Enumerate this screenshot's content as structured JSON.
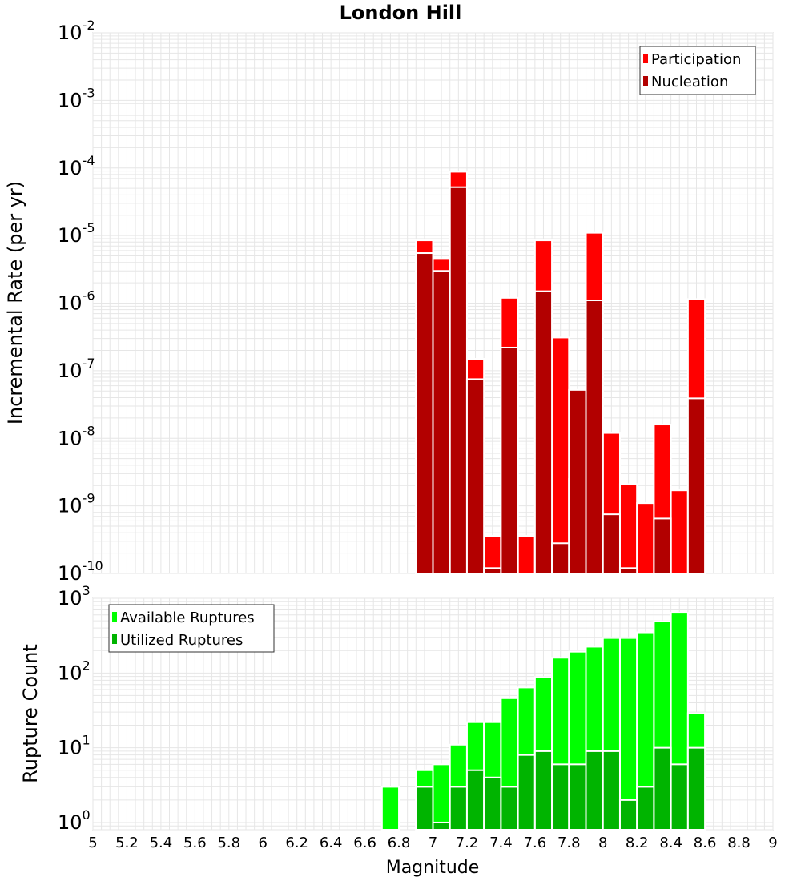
{
  "chart_data": [
    {
      "type": "bar",
      "title": "London Hill",
      "ylabel": "Incremental Rate (per yr)",
      "xlabel": "",
      "yscale": "log",
      "ylim": [
        1e-10,
        0.01
      ],
      "xlim": [
        5,
        9
      ],
      "grid": true,
      "legend_position": "top-right",
      "x": [
        6.95,
        7.05,
        7.15,
        7.25,
        7.35,
        7.45,
        7.55,
        7.65,
        7.75,
        7.85,
        7.95,
        8.05,
        8.15,
        8.25,
        8.35,
        8.45,
        8.55
      ],
      "series": [
        {
          "name": "Participation",
          "color": "#ff0000",
          "values": [
            8.5e-06,
            4.5e-06,
            8.8e-05,
            1.5e-07,
            3.6e-10,
            1.2e-06,
            3.6e-10,
            8.5e-06,
            3.1e-07,
            2.5e-09,
            1.1e-05,
            1.2e-08,
            2.1e-09,
            1.1e-09,
            1.6e-08,
            1.7e-09,
            1.15e-06
          ]
        },
        {
          "name": "Nucleation",
          "color": "#b20000",
          "values": [
            5.5e-06,
            3e-06,
            5.2e-05,
            7.5e-08,
            1.2e-10,
            2.2e-07,
            null,
            1.5e-06,
            2.8e-10,
            5.2e-08,
            1.1e-06,
            7.5e-10,
            1.2e-10,
            null,
            6.5e-10,
            null,
            3.9e-08
          ]
        }
      ]
    },
    {
      "type": "bar",
      "title": "",
      "ylabel": "Rupture Count",
      "xlabel": "Magnitude",
      "yscale": "log",
      "ylim": [
        0.8,
        1000
      ],
      "xlim": [
        5,
        9
      ],
      "grid": true,
      "legend_position": "top-left",
      "x": [
        6.75,
        6.95,
        7.05,
        7.15,
        7.25,
        7.35,
        7.45,
        7.55,
        7.65,
        7.75,
        7.85,
        7.95,
        8.05,
        8.15,
        8.25,
        8.35,
        8.45,
        8.55
      ],
      "series": [
        {
          "name": "Available Ruptures",
          "color": "#00ff00",
          "values": [
            3,
            5,
            6,
            11,
            22,
            22,
            46,
            64,
            88,
            160,
            193,
            225,
            294,
            294,
            350,
            490,
            640,
            29
          ]
        },
        {
          "name": "Utilized Ruptures",
          "color": "#00b400",
          "values": [
            null,
            3,
            1,
            3,
            5,
            4,
            3,
            8,
            9,
            6,
            6,
            9,
            9,
            2,
            3,
            10,
            6,
            10
          ]
        }
      ]
    }
  ],
  "x_ticks": [
    "5",
    "5.2",
    "5.4",
    "5.6",
    "5.8",
    "6",
    "6.2",
    "6.4",
    "6.6",
    "6.8",
    "7",
    "7.2",
    "7.4",
    "7.6",
    "7.8",
    "8",
    "8.2",
    "8.4",
    "8.6",
    "8.8",
    "9"
  ],
  "top_y_ticks": [
    {
      "base": "10",
      "exp": "-2"
    },
    {
      "base": "10",
      "exp": "-3"
    },
    {
      "base": "10",
      "exp": "-4"
    },
    {
      "base": "10",
      "exp": "-5"
    },
    {
      "base": "10",
      "exp": "-6"
    },
    {
      "base": "10",
      "exp": "-7"
    },
    {
      "base": "10",
      "exp": "-8"
    },
    {
      "base": "10",
      "exp": "-9"
    },
    {
      "base": "10",
      "exp": "-10"
    }
  ],
  "bottom_y_ticks": [
    {
      "base": "10",
      "exp": "3"
    },
    {
      "base": "10",
      "exp": "2"
    },
    {
      "base": "10",
      "exp": "1"
    },
    {
      "base": "10",
      "exp": "0"
    }
  ],
  "colors": {
    "grid": "#e6e6e6",
    "frame": "#b0b0b0",
    "bar_edge": "#ffffff"
  }
}
